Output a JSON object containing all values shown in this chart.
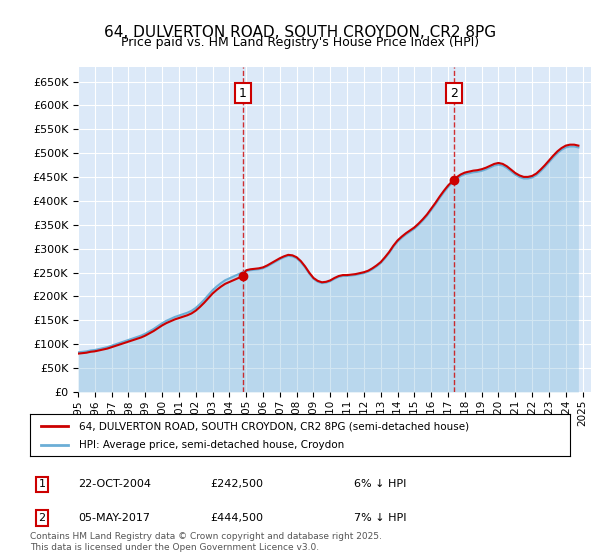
{
  "title": "64, DULVERTON ROAD, SOUTH CROYDON, CR2 8PG",
  "subtitle": "Price paid vs. HM Land Registry's House Price Index (HPI)",
  "ylim": [
    0,
    680000
  ],
  "yticks": [
    0,
    50000,
    100000,
    150000,
    200000,
    250000,
    300000,
    350000,
    400000,
    450000,
    500000,
    550000,
    600000,
    650000
  ],
  "xlim_start": 1995,
  "xlim_end": 2025.5,
  "background_color": "#dce9f8",
  "plot_bg": "#dce9f8",
  "grid_color": "#ffffff",
  "sale1_year": 2004.8,
  "sale1_price": 242500,
  "sale2_year": 2017.35,
  "sale2_price": 444500,
  "legend_line1": "64, DULVERTON ROAD, SOUTH CROYDON, CR2 8PG (semi-detached house)",
  "legend_line2": "HPI: Average price, semi-detached house, Croydon",
  "annotation1_date": "22-OCT-2004",
  "annotation1_price": "£242,500",
  "annotation1_pct": "6% ↓ HPI",
  "annotation2_date": "05-MAY-2017",
  "annotation2_price": "£444,500",
  "annotation2_pct": "7% ↓ HPI",
  "footer": "Contains HM Land Registry data © Crown copyright and database right 2025.\nThis data is licensed under the Open Government Licence v3.0.",
  "hpi_color": "#6baed6",
  "price_color": "#cc0000",
  "hpi_years": [
    1995,
    1995.25,
    1995.5,
    1995.75,
    1996,
    1996.25,
    1996.5,
    1996.75,
    1997,
    1997.25,
    1997.5,
    1997.75,
    1998,
    1998.25,
    1998.5,
    1998.75,
    1999,
    1999.25,
    1999.5,
    1999.75,
    2000,
    2000.25,
    2000.5,
    2000.75,
    2001,
    2001.25,
    2001.5,
    2001.75,
    2002,
    2002.25,
    2002.5,
    2002.75,
    2003,
    2003.25,
    2003.5,
    2003.75,
    2004,
    2004.25,
    2004.5,
    2004.75,
    2005,
    2005.25,
    2005.5,
    2005.75,
    2006,
    2006.25,
    2006.5,
    2006.75,
    2007,
    2007.25,
    2007.5,
    2007.75,
    2008,
    2008.25,
    2008.5,
    2008.75,
    2009,
    2009.25,
    2009.5,
    2009.75,
    2010,
    2010.25,
    2010.5,
    2010.75,
    2011,
    2011.25,
    2011.5,
    2011.75,
    2012,
    2012.25,
    2012.5,
    2012.75,
    2013,
    2013.25,
    2013.5,
    2013.75,
    2014,
    2014.25,
    2014.5,
    2014.75,
    2015,
    2015.25,
    2015.5,
    2015.75,
    2016,
    2016.25,
    2016.5,
    2016.75,
    2017,
    2017.25,
    2017.5,
    2017.75,
    2018,
    2018.25,
    2018.5,
    2018.75,
    2019,
    2019.25,
    2019.5,
    2019.75,
    2020,
    2020.25,
    2020.5,
    2020.75,
    2021,
    2021.25,
    2021.5,
    2021.75,
    2022,
    2022.25,
    2022.5,
    2022.75,
    2023,
    2023.25,
    2023.5,
    2023.75,
    2024,
    2024.25,
    2024.5,
    2024.75
  ],
  "hpi_values": [
    83000,
    84000,
    85000,
    87000,
    88000,
    90000,
    92000,
    94000,
    97000,
    100000,
    103000,
    106000,
    109000,
    112000,
    115000,
    118000,
    122000,
    127000,
    132000,
    138000,
    144000,
    149000,
    153000,
    157000,
    160000,
    163000,
    166000,
    170000,
    176000,
    184000,
    193000,
    203000,
    213000,
    221000,
    228000,
    234000,
    238000,
    242000,
    246000,
    250000,
    253000,
    255000,
    256000,
    257000,
    259000,
    263000,
    268000,
    273000,
    278000,
    282000,
    285000,
    284000,
    280000,
    272000,
    261000,
    248000,
    237000,
    231000,
    228000,
    229000,
    232000,
    237000,
    241000,
    243000,
    243000,
    244000,
    245000,
    247000,
    249000,
    252000,
    257000,
    263000,
    270000,
    280000,
    291000,
    304000,
    315000,
    323000,
    330000,
    336000,
    342000,
    350000,
    359000,
    369000,
    381000,
    393000,
    406000,
    418000,
    429000,
    438000,
    446000,
    452000,
    456000,
    458000,
    460000,
    461000,
    463000,
    466000,
    470000,
    474000,
    476000,
    474000,
    469000,
    462000,
    455000,
    450000,
    447000,
    447000,
    449000,
    454000,
    462000,
    471000,
    481000,
    491000,
    500000,
    507000,
    512000,
    514000,
    514000,
    512000
  ],
  "price_years": [
    1995,
    2004.8,
    2017.35
  ],
  "price_values": [
    85000,
    242500,
    444500
  ]
}
